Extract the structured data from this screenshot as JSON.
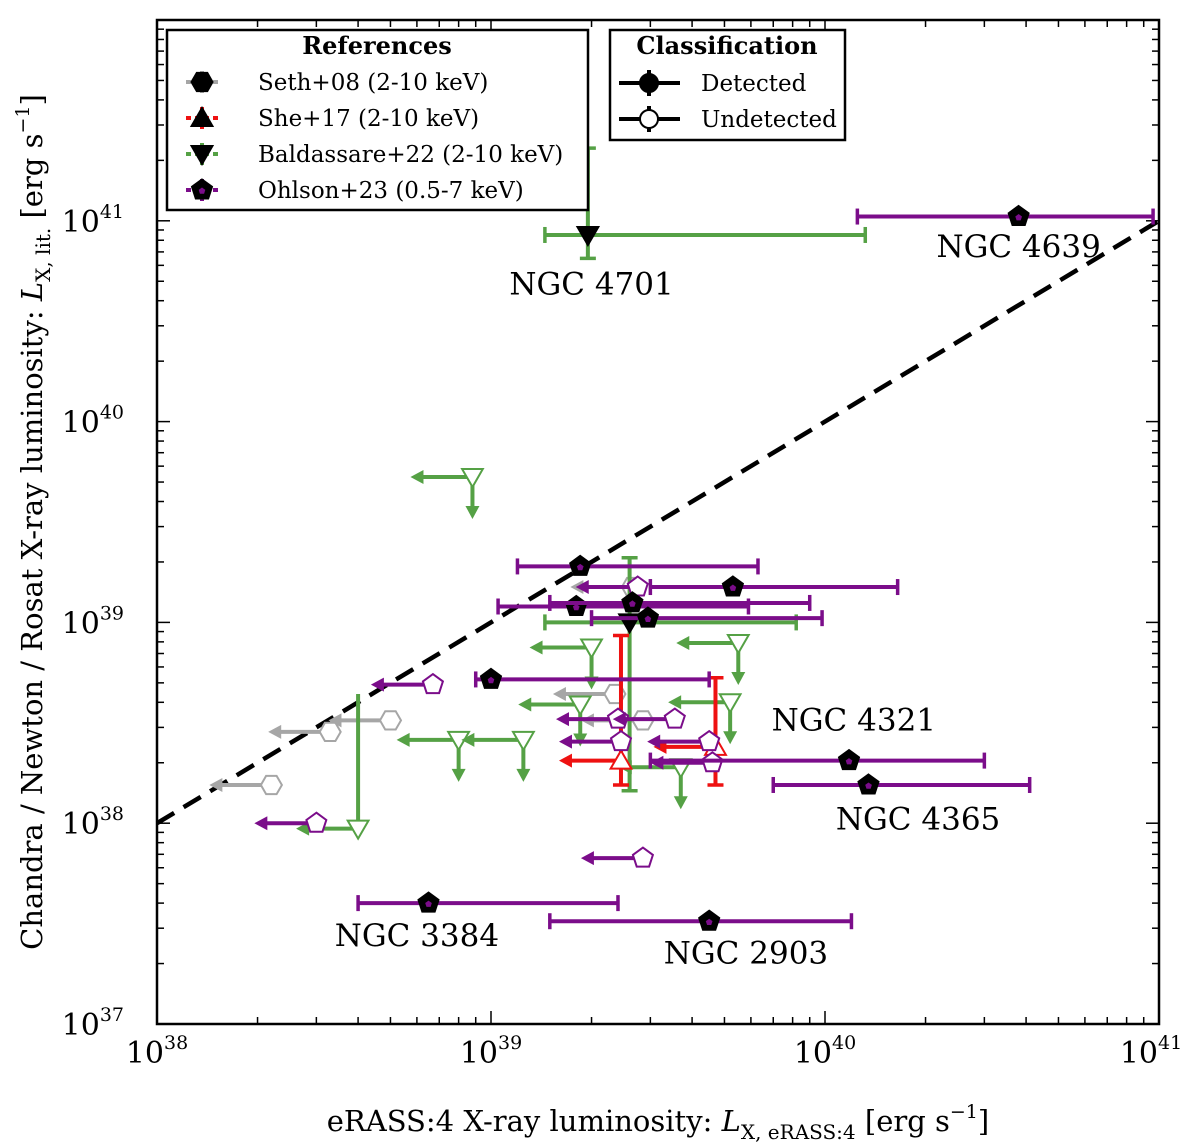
{
  "chart_data": {
    "type": "scatter",
    "xscale": "log",
    "yscale": "log",
    "xlim": [
      1e+38,
      1e+41
    ],
    "ylim": [
      1e+37,
      1e+42
    ],
    "xlabel_prefix": "eRASS:4 X-ray luminosity: ",
    "xlabel_symbol": "L",
    "xlabel_sub": "X, eRASS:4",
    "xlabel_unit": " [erg s",
    "xlabel_unit_exp": "−1",
    "xlabel_unit_close": "]",
    "ylabel_prefix": "Chandra / Newton / Rosat X-ray luminosity: ",
    "ylabel_symbol": "L",
    "ylabel_sub": "X, lit.",
    "ylabel_unit": " [erg s",
    "ylabel_unit_exp": "−1",
    "ylabel_unit_close": "]",
    "x_ticks": [
      {
        "value": 1e+38,
        "base": "10",
        "exp": "38"
      },
      {
        "value": 1e+39,
        "base": "10",
        "exp": "39"
      },
      {
        "value": 1e+40,
        "base": "10",
        "exp": "40"
      },
      {
        "value": 1e+41,
        "base": "10",
        "exp": "41"
      }
    ],
    "y_ticks": [
      {
        "value": 1e+37,
        "base": "10",
        "exp": "37"
      },
      {
        "value": 1e+38,
        "base": "10",
        "exp": "38"
      },
      {
        "value": 1e+39,
        "base": "10",
        "exp": "39"
      },
      {
        "value": 1e+40,
        "base": "10",
        "exp": "40"
      },
      {
        "value": 1e+41,
        "base": "10",
        "exp": "41"
      }
    ],
    "one_to_one_line": {
      "x": [
        1e+38,
        1e+41
      ],
      "y": [
        1e+38,
        1e+41
      ],
      "style": "dashed",
      "color": "#000000"
    },
    "references": {
      "title": "References",
      "placement": "upper-left",
      "entries": [
        {
          "label": "Seth+08 (2-10 keV)",
          "color": "#a6a6a6",
          "marker": "hexagon"
        },
        {
          "label": "She+17 (2-10 keV)",
          "color": "#ee1111",
          "marker": "triangle-up"
        },
        {
          "label": "Baldassare+22 (2-10 keV)",
          "color": "#55a145",
          "marker": "triangle-down"
        },
        {
          "label": "Ohlson+23 (0.5-7 keV)",
          "color": "#7b0d8a",
          "marker": "pentagon"
        }
      ]
    },
    "classification": {
      "title": "Classification",
      "placement": "upper-center",
      "entries": [
        {
          "label": "Detected",
          "fill": "#000000"
        },
        {
          "label": "Undetected",
          "fill": "#ffffff"
        }
      ]
    },
    "series": [
      {
        "name": "Seth+08 (2-10 keV)",
        "color": "#a6a6a6",
        "marker": "hexagon",
        "points": [
          {
            "x": 2.2e+38,
            "y": 1.55e+38,
            "detected": false,
            "xupper": true
          },
          {
            "x": 3.3e+38,
            "y": 2.85e+38,
            "detected": false,
            "xupper": true
          },
          {
            "x": 5e+38,
            "y": 3.25e+38,
            "detected": false,
            "xupper": true
          },
          {
            "x": 2.35e+39,
            "y": 4.4e+38,
            "detected": false,
            "xupper": true
          },
          {
            "x": 2.85e+39,
            "y": 3.25e+38,
            "detected": false,
            "xupper": true
          },
          {
            "x": 2.65e+39,
            "y": 1.5e+39,
            "detected": false,
            "xupper": true
          }
        ]
      },
      {
        "name": "She+17 (2-10 keV)",
        "color": "#ee1111",
        "marker": "triangle-up",
        "points": [
          {
            "x": 2.45e+39,
            "y": 2.05e+38,
            "detected": false,
            "xupper": true,
            "yerr": [
              1.55e+38,
              8.6e+38
            ]
          },
          {
            "x": 4.7e+39,
            "y": 2.4e+38,
            "detected": false,
            "xupper": true,
            "yerr": [
              1.55e+38,
              5.3e+38
            ]
          }
        ]
      },
      {
        "name": "Baldassare+22 (2-10 keV)",
        "color": "#55a145",
        "marker": "triangle-down",
        "points": [
          {
            "x": 1.95e+39,
            "y": 8.5e+40,
            "detected": true,
            "xerr": [
              1.45e+39,
              1.32e+40
            ],
            "yerr": [
              6.5e+40,
              2.3e+41
            ]
          },
          {
            "x": 2.6e+39,
            "y": 1e+39,
            "detected": true,
            "xerr": [
              1.45e+39,
              8.2e+39
            ],
            "yerr": [
              1.45e+38,
              2.1e+39
            ]
          },
          {
            "x": 8.8e+38,
            "y": 5.3e+39,
            "detected": false,
            "xupper": true,
            "yupper": true
          },
          {
            "x": 2e+39,
            "y": 7.5e+38,
            "detected": false,
            "xupper": true,
            "yupper": true
          },
          {
            "x": 5.5e+39,
            "y": 7.9e+38,
            "detected": false,
            "xupper": true,
            "yupper": true
          },
          {
            "x": 1.85e+39,
            "y": 3.9e+38,
            "detected": false,
            "xupper": true,
            "yupper": true
          },
          {
            "x": 5.2e+39,
            "y": 4e+38,
            "detected": false,
            "xupper": true,
            "yupper": true
          },
          {
            "x": 8e+38,
            "y": 2.6e+38,
            "detected": false,
            "xupper": true,
            "yupper": true
          },
          {
            "x": 1.25e+39,
            "y": 2.6e+38,
            "detected": false,
            "xupper": true,
            "yupper": true
          },
          {
            "x": 3.7e+39,
            "y": 1.9e+38,
            "detected": false,
            "xupper": true,
            "yupper": true
          },
          {
            "x": 4e+38,
            "y": 9.4e+37,
            "detected": false,
            "xupper": true,
            "yrange": [
              9.4e+37,
              4.4e+38
            ]
          }
        ]
      },
      {
        "name": "Ohlson+23 (0.5-7 keV)",
        "color": "#7b0d8a",
        "marker": "pentagon",
        "points": [
          {
            "x": 3.8e+40,
            "y": 1.05e+41,
            "detected": true,
            "xerr": [
              1.25e+40,
              9.6e+40
            ],
            "label": "NGC 4639"
          },
          {
            "x": 1.85e+39,
            "y": 1.9e+39,
            "detected": true,
            "xerr": [
              1.2e+39,
              6.3e+39
            ]
          },
          {
            "x": 5.3e+39,
            "y": 1.5e+39,
            "detected": true,
            "xerr": [
              3e+39,
              1.65e+40
            ]
          },
          {
            "x": 1.8e+39,
            "y": 1.2e+39,
            "detected": true,
            "xerr": [
              1.05e+39,
              5.9e+39
            ]
          },
          {
            "x": 2.65e+39,
            "y": 1.25e+39,
            "detected": true,
            "xerr": [
              1.5e+39,
              9e+39
            ]
          },
          {
            "x": 2.95e+39,
            "y": 1.05e+39,
            "detected": true,
            "xerr": [
              2e+39,
              9.8e+39
            ]
          },
          {
            "x": 1e+39,
            "y": 5.2e+38,
            "detected": true,
            "xerr": [
              9e+38,
              4.5e+39
            ]
          },
          {
            "x": 1.18e+40,
            "y": 2.05e+38,
            "detected": true,
            "xerr": [
              3e+39,
              3e+40
            ],
            "label": "NGC 4321"
          },
          {
            "x": 1.35e+40,
            "y": 1.55e+38,
            "detected": true,
            "xerr": [
              7e+39,
              4.1e+40
            ],
            "label": "NGC 4365"
          },
          {
            "x": 6.5e+38,
            "y": 4e+37,
            "detected": true,
            "xerr": [
              4e+38,
              2.4e+39
            ],
            "label": "NGC 3384"
          },
          {
            "x": 4.5e+39,
            "y": 3.25e+37,
            "detected": true,
            "xerr": [
              1.5e+39,
              1.2e+40
            ],
            "label": "NGC 2903"
          },
          {
            "x": 6.7e+38,
            "y": 4.9e+38,
            "detected": false,
            "xupper": true
          },
          {
            "x": 2.75e+39,
            "y": 1.5e+39,
            "detected": false,
            "xupper": true
          },
          {
            "x": 2.4e+39,
            "y": 3.3e+38,
            "detected": false,
            "xupper": true
          },
          {
            "x": 3.55e+39,
            "y": 3.3e+38,
            "detected": false,
            "xupper": true
          },
          {
            "x": 2.45e+39,
            "y": 2.55e+38,
            "detected": false,
            "xupper": true
          },
          {
            "x": 4.5e+39,
            "y": 2.55e+38,
            "detected": false,
            "xupper": true
          },
          {
            "x": 4.6e+39,
            "y": 2e+38,
            "detected": false,
            "xupper": true
          },
          {
            "x": 3e+38,
            "y": 1e+38,
            "detected": false,
            "xupper": true
          },
          {
            "x": 2.85e+39,
            "y": 6.7e+37,
            "detected": false,
            "xupper": true
          }
        ]
      }
    ],
    "annotations": [
      {
        "text": "NGC 4701",
        "x": 2e+39,
        "y": 4.3e+40
      },
      {
        "text": "NGC 4639",
        "x": 3.8e+40,
        "y": 6.6e+40
      },
      {
        "text": "NGC 4321",
        "x": 1.22e+40,
        "y": 2.9e+38
      },
      {
        "text": "NGC 4365",
        "x": 1.9e+40,
        "y": 9.3e+37
      },
      {
        "text": "NGC 3384",
        "x": 6e+38,
        "y": 2.45e+37
      },
      {
        "text": "NGC 2903",
        "x": 5.8e+39,
        "y": 2e+37
      }
    ]
  }
}
